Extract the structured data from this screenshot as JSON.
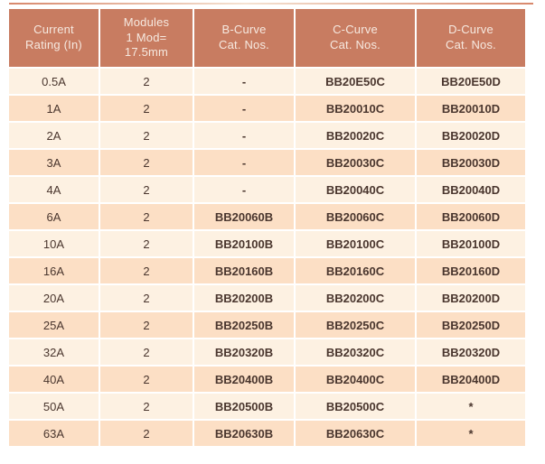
{
  "colors": {
    "header_bg": "#c87c61",
    "header_text": "#f6e9e0",
    "row_light_bg": "#fdf1e2",
    "row_dark_bg": "#fcdfc5",
    "body_text": "#4a362e",
    "top_line": "#d8886c"
  },
  "table": {
    "headers": [
      {
        "id": "current-rating",
        "lines": [
          "Current",
          "Rating (In)"
        ]
      },
      {
        "id": "modules",
        "lines": [
          "Modules",
          "1 Mod=",
          "17.5mm"
        ]
      },
      {
        "id": "b-curve",
        "lines": [
          "B-Curve",
          "Cat. Nos."
        ]
      },
      {
        "id": "c-curve",
        "lines": [
          "C-Curve",
          "Cat. Nos."
        ]
      },
      {
        "id": "d-curve",
        "lines": [
          "D-Curve",
          "Cat. Nos."
        ]
      }
    ],
    "rows": [
      [
        "0.5A",
        "2",
        "-",
        "BB20E50C",
        "BB20E50D"
      ],
      [
        "1A",
        "2",
        "-",
        "BB20010C",
        "BB20010D"
      ],
      [
        "2A",
        "2",
        "-",
        "BB20020C",
        "BB20020D"
      ],
      [
        "3A",
        "2",
        "-",
        "BB20030C",
        "BB20030D"
      ],
      [
        "4A",
        "2",
        "-",
        "BB20040C",
        "BB20040D"
      ],
      [
        "6A",
        "2",
        "BB20060B",
        "BB20060C",
        "BB20060D"
      ],
      [
        "10A",
        "2",
        "BB20100B",
        "BB20100C",
        "BB20100D"
      ],
      [
        "16A",
        "2",
        "BB20160B",
        "BB20160C",
        "BB20160D"
      ],
      [
        "20A",
        "2",
        "BB20200B",
        "BB20200C",
        "BB20200D"
      ],
      [
        "25A",
        "2",
        "BB20250B",
        "BB20250C",
        "BB20250D"
      ],
      [
        "32A",
        "2",
        "BB20320B",
        "BB20320C",
        "BB20320D"
      ],
      [
        "40A",
        "2",
        "BB20400B",
        "BB20400C",
        "BB20400D"
      ],
      [
        "50A",
        "2",
        "BB20500B",
        "BB20500C",
        "*"
      ],
      [
        "63A",
        "2",
        "BB20630B",
        "BB20630C",
        "*"
      ]
    ]
  }
}
